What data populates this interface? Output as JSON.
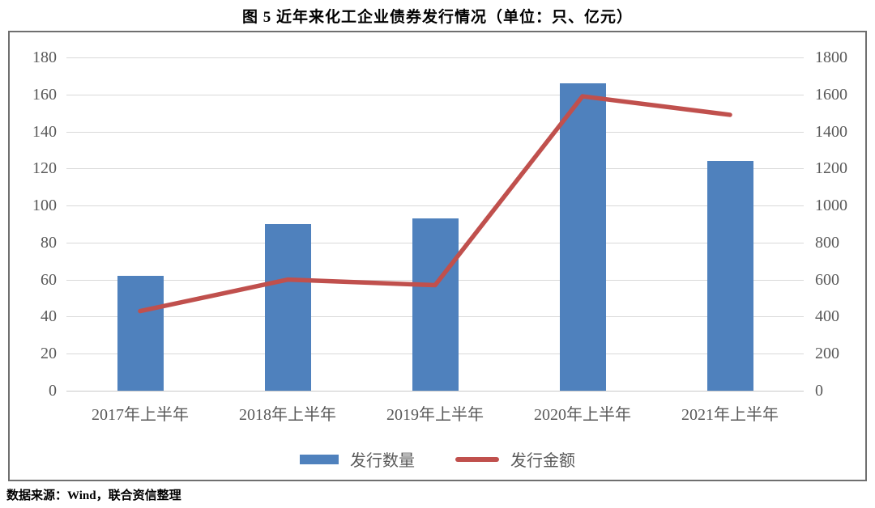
{
  "title": "图 5  近年来化工企业债券发行情况（单位：只、亿元）",
  "source": "数据来源：Wind，联合资信整理",
  "colors": {
    "bar": "#4f81bd",
    "line": "#c0504d",
    "axis_text": "#595959",
    "gridline": "#d9d9d9",
    "border": "#6f6f6f"
  },
  "chart_data": {
    "type": "bar",
    "subtype": "bar+line combo, dual axis",
    "title": "图 5  近年来化工企业债券发行情况（单位：只、亿元）",
    "categories": [
      "2017年上半年",
      "2018年上半年",
      "2019年上半年",
      "2020年上半年",
      "2021年上半年"
    ],
    "series": [
      {
        "name": "发行数量",
        "type": "bar",
        "axis": "left",
        "color": "#4f81bd",
        "values": [
          62,
          90,
          93,
          166,
          124
        ]
      },
      {
        "name": "发行金额",
        "type": "line",
        "axis": "right",
        "color": "#c0504d",
        "values": [
          430,
          600,
          570,
          1590,
          1490
        ]
      }
    ],
    "left_axis": {
      "min": 0,
      "max": 180,
      "step": 20,
      "tick_labels": [
        "0",
        "20",
        "40",
        "60",
        "80",
        "100",
        "120",
        "140",
        "160",
        "180"
      ]
    },
    "right_axis": {
      "min": 0,
      "max": 1800,
      "step": 200,
      "tick_labels": [
        "0",
        "200",
        "400",
        "600",
        "800",
        "1000",
        "1200",
        "1400",
        "1600",
        "1800"
      ]
    },
    "grid": "horizontal only",
    "legend_position": "bottom"
  }
}
